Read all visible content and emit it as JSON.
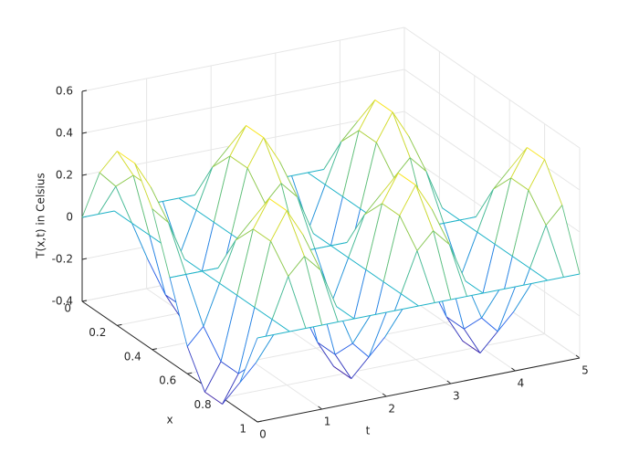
{
  "chart_data": {
    "type": "mesh",
    "zlabel": "T(x,t) in Celsius",
    "xlabel": "x",
    "ylabel": "t",
    "x": [
      0,
      0.1,
      0.2,
      0.3,
      0.4,
      0.5,
      0.6,
      0.7,
      0.8,
      0.9,
      1
    ],
    "t": [
      0,
      0.25,
      0.5,
      0.75,
      1,
      1.25,
      1.5,
      1.75,
      2,
      2.25,
      2.5,
      2.75,
      3,
      3.25,
      3.5,
      3.75,
      4,
      4.25,
      4.5,
      4.75,
      5
    ],
    "z": [
      [
        0,
        0,
        0,
        0,
        0,
        0,
        0,
        0,
        0,
        0,
        0,
        0,
        0,
        0,
        0,
        0,
        0,
        0,
        0,
        0,
        0
      ],
      [
        0.27,
        0.19,
        0,
        -0.19,
        -0.27,
        -0.19,
        0,
        0.19,
        0.27,
        0.19,
        0,
        -0.19,
        -0.27,
        -0.19,
        0,
        0.19,
        0.27,
        0.19,
        0,
        -0.19,
        -0.27
      ],
      [
        0.43,
        0.3,
        0,
        -0.3,
        -0.43,
        -0.3,
        0,
        0.3,
        0.43,
        0.3,
        0,
        -0.3,
        -0.43,
        -0.3,
        0,
        0.3,
        0.43,
        0.3,
        0,
        -0.3,
        -0.43
      ],
      [
        0.43,
        0.3,
        0,
        -0.3,
        -0.43,
        -0.3,
        0,
        0.3,
        0.43,
        0.3,
        0,
        -0.3,
        -0.43,
        -0.3,
        0,
        0.3,
        0.43,
        0.3,
        0,
        -0.3,
        -0.43
      ],
      [
        0.27,
        0.19,
        0,
        -0.19,
        -0.27,
        -0.19,
        0,
        0.19,
        0.27,
        0.19,
        0,
        -0.19,
        -0.27,
        -0.19,
        0,
        0.19,
        0.27,
        0.19,
        0,
        -0.19,
        -0.27
      ],
      [
        0,
        0,
        0,
        0,
        0,
        0,
        0,
        0,
        0,
        0,
        0,
        0,
        0,
        0,
        0,
        0,
        0,
        0,
        0,
        0,
        0
      ],
      [
        -0.27,
        -0.19,
        0,
        0.19,
        0.27,
        0.19,
        0,
        -0.19,
        -0.27,
        -0.19,
        0,
        0.19,
        0.27,
        0.19,
        0,
        -0.19,
        -0.27,
        -0.19,
        0,
        0.19,
        0.27
      ],
      [
        -0.43,
        -0.3,
        0,
        0.3,
        0.43,
        0.3,
        0,
        -0.3,
        -0.43,
        -0.3,
        0,
        0.3,
        0.43,
        0.3,
        0,
        -0.3,
        -0.43,
        -0.3,
        0,
        0.3,
        0.43
      ],
      [
        -0.43,
        -0.3,
        0,
        0.3,
        0.43,
        0.3,
        0,
        -0.3,
        -0.43,
        -0.3,
        0,
        0.3,
        0.43,
        0.3,
        0,
        -0.3,
        -0.43,
        -0.3,
        0,
        0.3,
        0.43
      ],
      [
        -0.27,
        -0.19,
        0,
        0.19,
        0.27,
        0.19,
        0,
        -0.19,
        -0.27,
        -0.19,
        0,
        0.19,
        0.27,
        0.19,
        0,
        -0.19,
        -0.27,
        -0.19,
        0,
        0.19,
        0.27
      ],
      [
        0,
        0,
        0,
        0,
        0,
        0,
        0,
        0,
        0,
        0,
        0,
        0,
        0,
        0,
        0,
        0,
        0,
        0,
        0,
        0,
        0
      ]
    ],
    "xlim": [
      0,
      1
    ],
    "xticks": [
      0,
      0.2,
      0.4,
      0.6,
      0.8,
      1
    ],
    "ylim": [
      0,
      5
    ],
    "yticks": [
      0,
      1,
      2,
      3,
      4,
      5
    ],
    "zlim": [
      -0.4,
      0.6
    ],
    "zticks": [
      -0.4,
      -0.2,
      0,
      0.2,
      0.4,
      0.6
    ],
    "grid": true,
    "colormap": [
      "#3e26a8",
      "#2e6ff0",
      "#1fb3c8",
      "#7fc65a",
      "#f9e51c"
    ]
  }
}
